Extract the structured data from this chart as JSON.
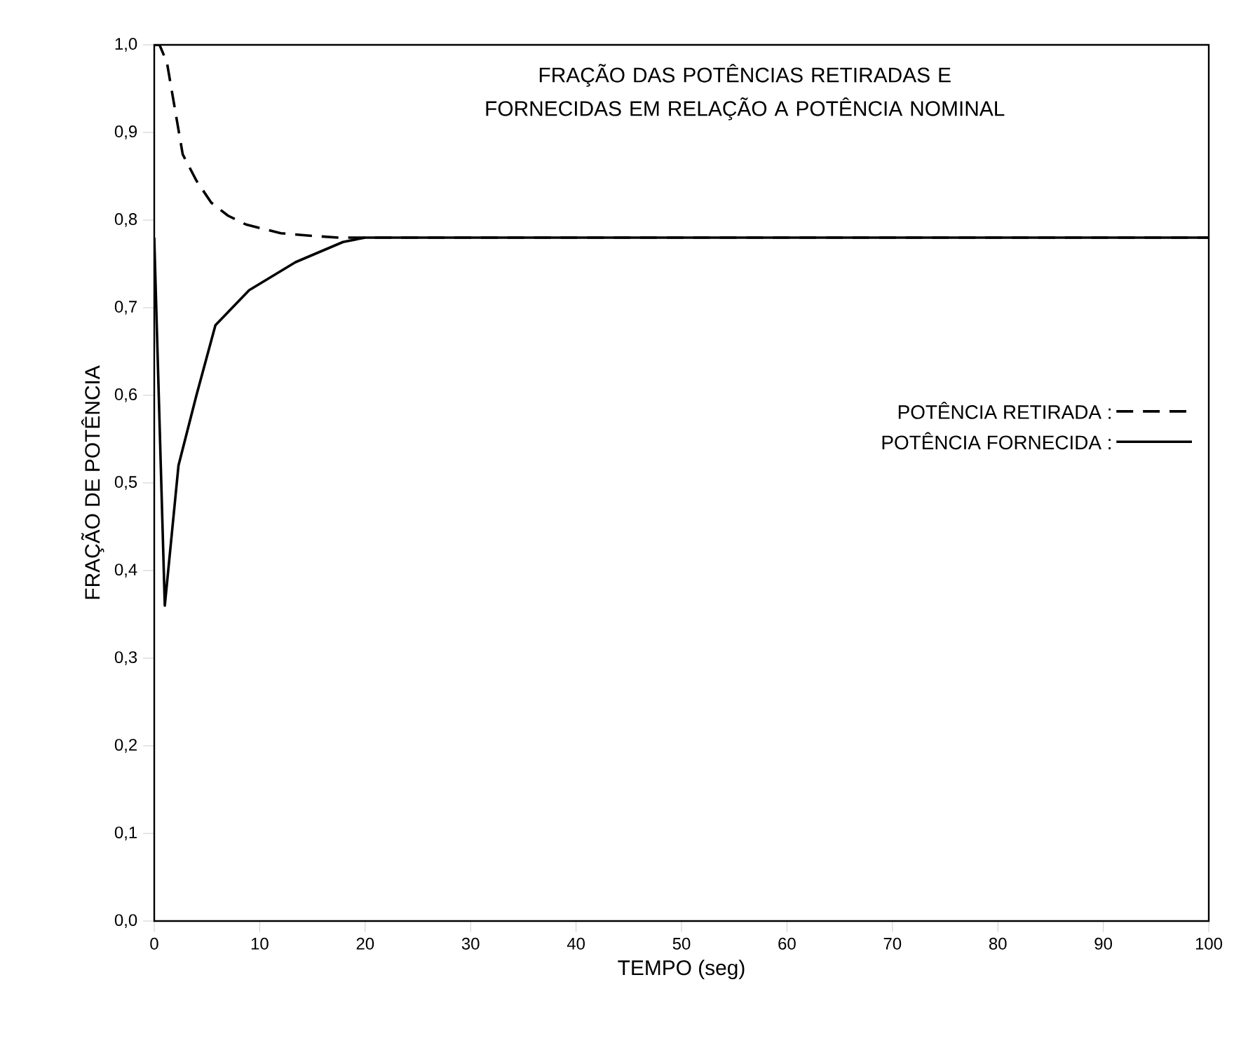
{
  "chart_data": {
    "type": "line",
    "title": "FRAÇÃO DAS POTÊNCIAS RETIRADAS E FORNECIDAS EM RELAÇÃO A POTÊNCIA NOMINAL",
    "xlabel": "TEMPO (seg)",
    "ylabel": "FRAÇÃO DE POTÊNCIA",
    "xlim": [
      0,
      100
    ],
    "ylim": [
      0,
      1
    ],
    "xticks": [
      0,
      10,
      20,
      30,
      40,
      50,
      60,
      70,
      80,
      90,
      100
    ],
    "yticks": [
      {
        "value": 0,
        "label": "0,0"
      },
      {
        "value": 0.1,
        "label": "0,1"
      },
      {
        "value": 0.2,
        "label": "0,2"
      },
      {
        "value": 0.3,
        "label": "0,3"
      },
      {
        "value": 0.4,
        "label": "0,4"
      },
      {
        "value": 0.5,
        "label": "0,5"
      },
      {
        "value": 0.6,
        "label": "0,6"
      },
      {
        "value": 0.7,
        "label": "0,7"
      },
      {
        "value": 0.8,
        "label": "0,8"
      },
      {
        "value": 0.9,
        "label": "0,9"
      },
      {
        "value": 1.0,
        "label": "1,0"
      }
    ],
    "grid": false,
    "legend": "right",
    "marker": "none",
    "series": [
      {
        "name": "POTÊNCIA RETIRADA :",
        "color": "#000000",
        "line_style": "dashed",
        "x": [
          0,
          0.5,
          1.2,
          2.7,
          4,
          5.4,
          7,
          8.7,
          12,
          15,
          17.5,
          20,
          30,
          50,
          100
        ],
        "values": [
          1.0,
          1.0,
          0.98,
          0.875,
          0.845,
          0.82,
          0.805,
          0.795,
          0.785,
          0.782,
          0.78,
          0.78,
          0.78,
          0.78,
          0.78
        ]
      },
      {
        "name": "POTÊNCIA FORNECIDA :",
        "color": "#000000",
        "line_style": "solid",
        "x": [
          0,
          1,
          2.3,
          4,
          5.8,
          9,
          13.4,
          17.9,
          20,
          30,
          50,
          100
        ],
        "values": [
          0.78,
          0.36,
          0.52,
          0.6,
          0.68,
          0.72,
          0.752,
          0.775,
          0.78,
          0.78,
          0.78,
          0.78
        ]
      }
    ]
  }
}
